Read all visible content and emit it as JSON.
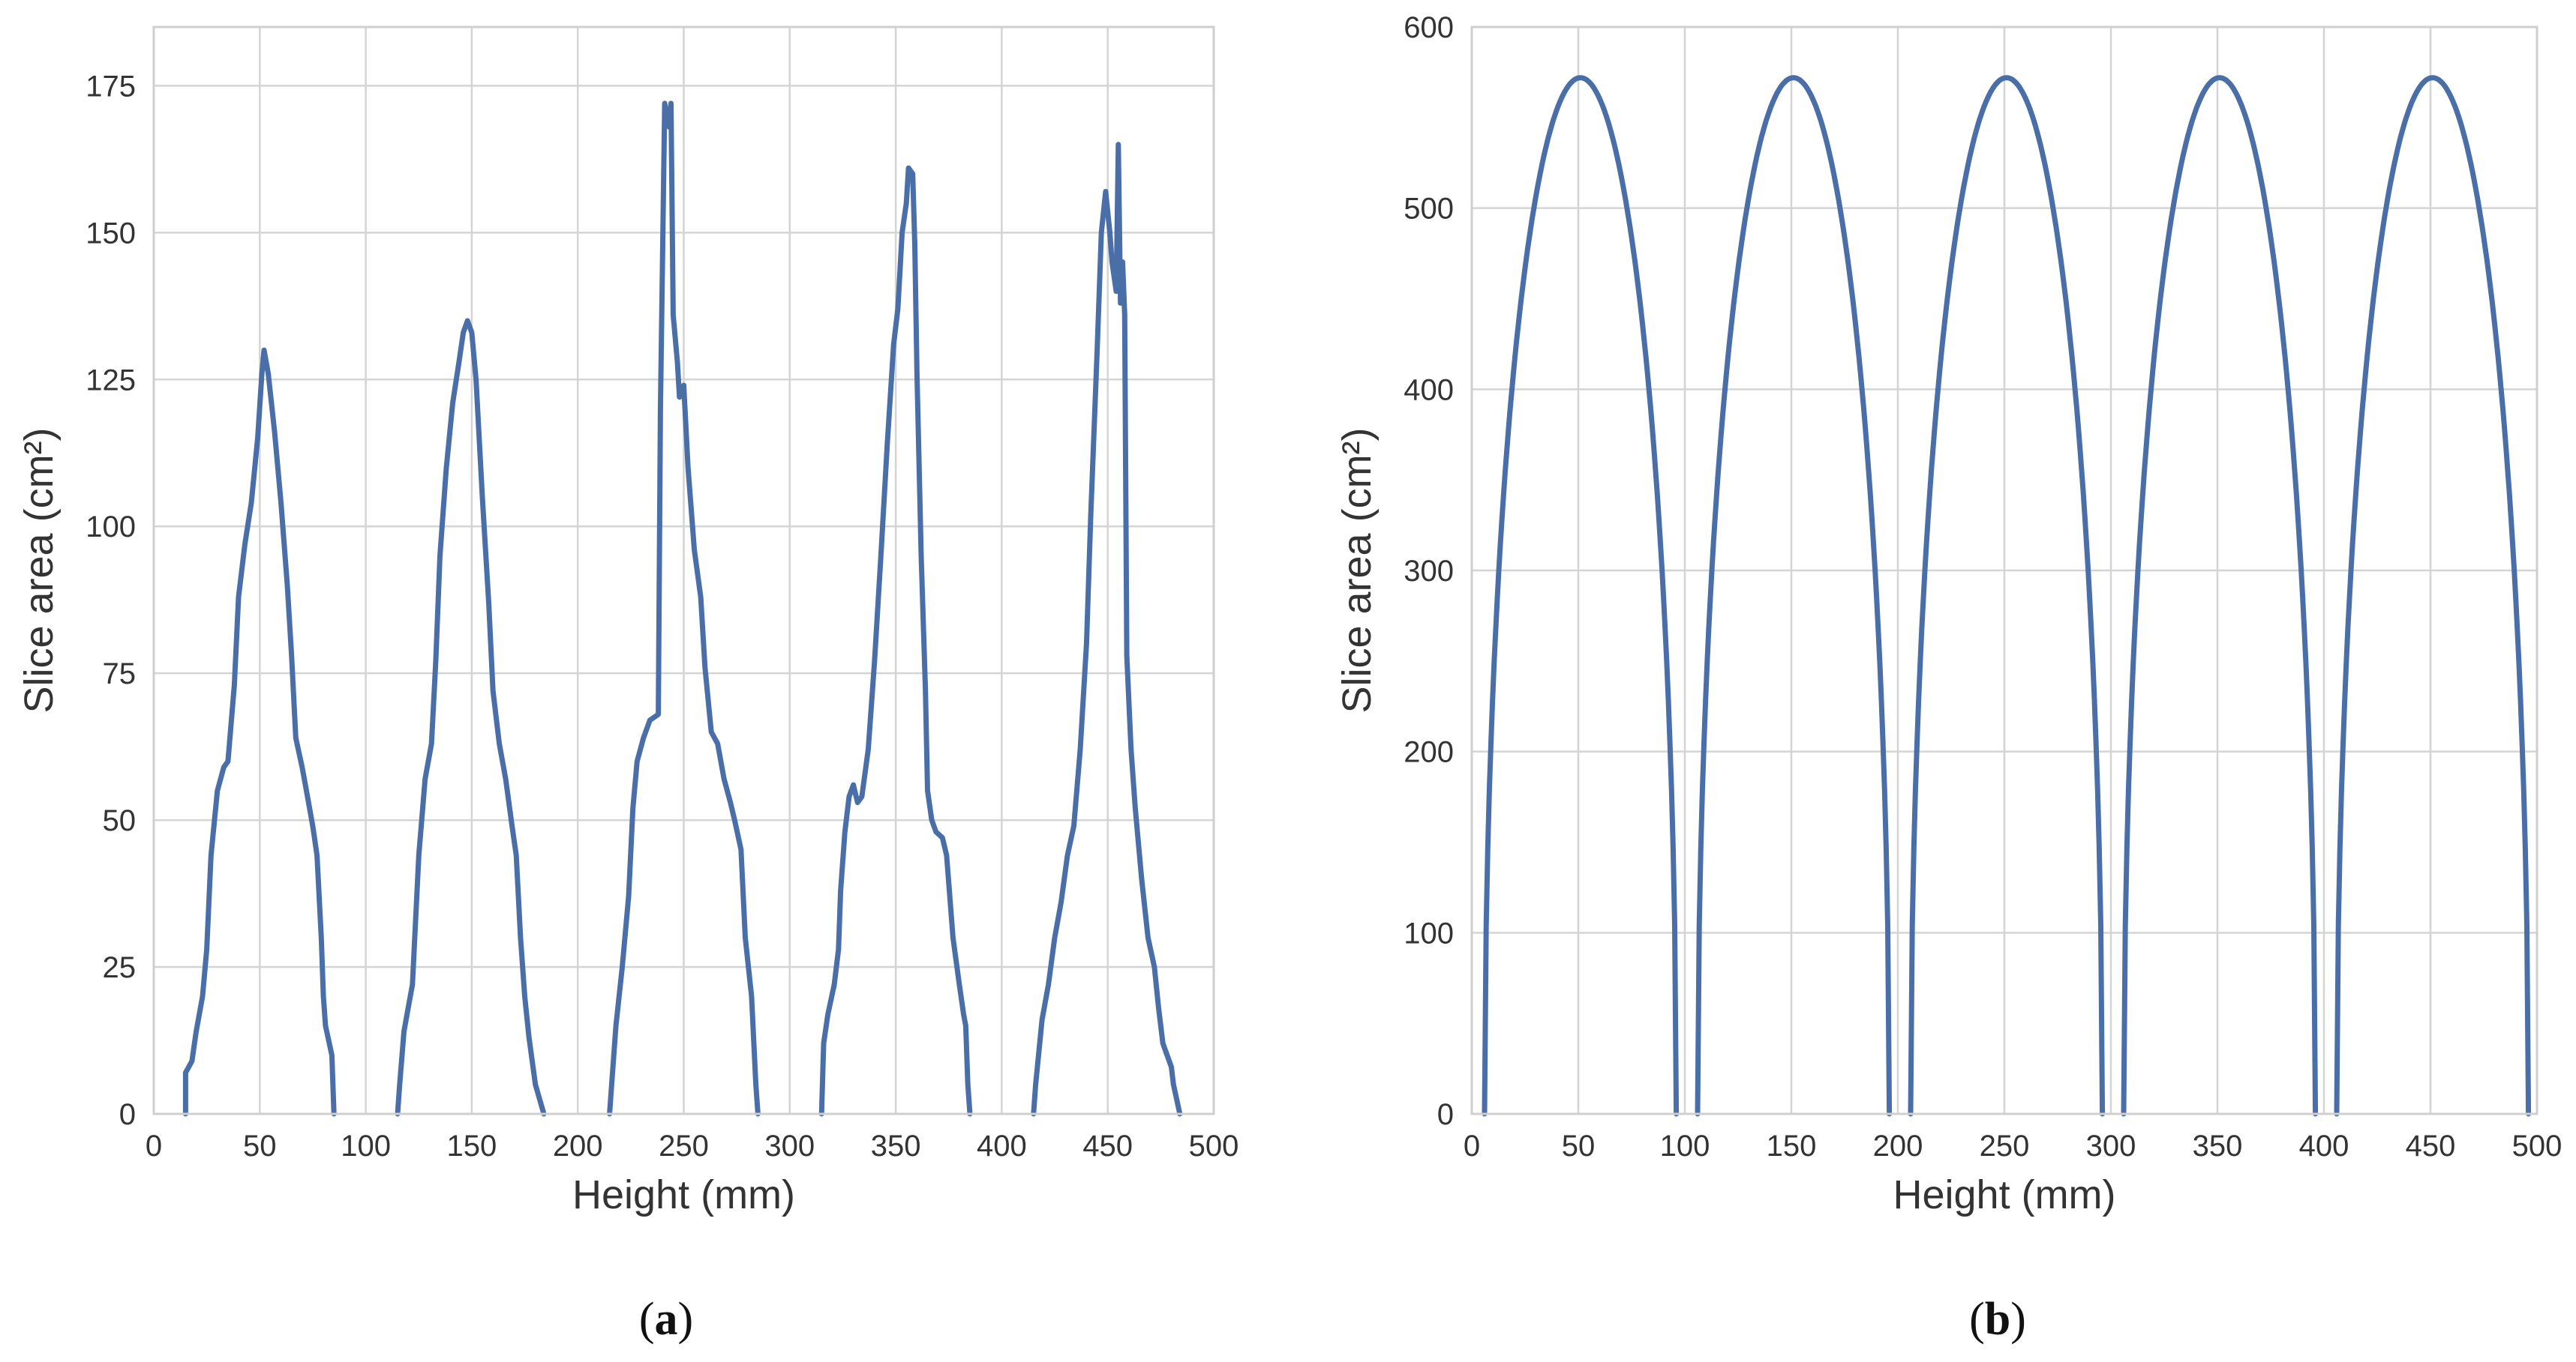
{
  "figure": {
    "panels": [
      "(a)",
      "(b)"
    ]
  },
  "chart_data": [
    {
      "type": "line",
      "panel": "a",
      "caption_letter": "a",
      "xlabel": "Height (mm)",
      "ylabel": "Slice area (cm²)",
      "xlim": [
        0,
        500
      ],
      "ylim": [
        0,
        185
      ],
      "xticks": [
        0,
        50,
        100,
        150,
        200,
        250,
        300,
        350,
        400,
        450,
        500
      ],
      "yticks": [
        0,
        25,
        50,
        75,
        100,
        125,
        150,
        175
      ],
      "grid": true,
      "color": "#4a6ea8",
      "segments": [
        [
          [
            15,
            0
          ],
          [
            15,
            7
          ],
          [
            18,
            9
          ],
          [
            20,
            14
          ],
          [
            23,
            20
          ],
          [
            25,
            28
          ],
          [
            27,
            44
          ],
          [
            30,
            55
          ],
          [
            33,
            59
          ],
          [
            35,
            60
          ],
          [
            38,
            73
          ],
          [
            40,
            88
          ],
          [
            43,
            97
          ],
          [
            46,
            104
          ],
          [
            49,
            115
          ],
          [
            51,
            126
          ],
          [
            52,
            130
          ],
          [
            54,
            126
          ],
          [
            57,
            116
          ],
          [
            60,
            104
          ],
          [
            63,
            90
          ],
          [
            65,
            78
          ],
          [
            67,
            64
          ],
          [
            70,
            59
          ],
          [
            72,
            55
          ],
          [
            75,
            49
          ],
          [
            77,
            44
          ],
          [
            79,
            30
          ],
          [
            80,
            20
          ],
          [
            81,
            15
          ],
          [
            84,
            10
          ],
          [
            85,
            0
          ]
        ],
        [
          [
            115,
            0
          ],
          [
            116,
            5
          ],
          [
            118,
            14
          ],
          [
            120,
            18
          ],
          [
            122,
            22
          ],
          [
            125,
            44
          ],
          [
            128,
            57
          ],
          [
            131,
            63
          ],
          [
            133,
            77
          ],
          [
            135,
            95
          ],
          [
            138,
            110
          ],
          [
            141,
            121
          ],
          [
            144,
            128
          ],
          [
            146,
            133
          ],
          [
            148,
            135
          ],
          [
            150,
            133
          ],
          [
            152,
            125
          ],
          [
            155,
            105
          ],
          [
            158,
            87
          ],
          [
            160,
            72
          ],
          [
            163,
            63
          ],
          [
            166,
            57
          ],
          [
            169,
            49
          ],
          [
            171,
            44
          ],
          [
            173,
            30
          ],
          [
            175,
            20
          ],
          [
            177,
            13
          ],
          [
            180,
            5
          ],
          [
            184,
            0
          ]
        ],
        [
          [
            215,
            0
          ],
          [
            216,
            5
          ],
          [
            218,
            15
          ],
          [
            221,
            25
          ],
          [
            224,
            37
          ],
          [
            226,
            52
          ],
          [
            228,
            60
          ],
          [
            231,
            64
          ],
          [
            234,
            67
          ],
          [
            238,
            68
          ],
          [
            239,
            120
          ],
          [
            241,
            172
          ],
          [
            243,
            168
          ],
          [
            244,
            172
          ],
          [
            245,
            136
          ],
          [
            247,
            128
          ],
          [
            248,
            122
          ],
          [
            250,
            124
          ],
          [
            252,
            110
          ],
          [
            255,
            96
          ],
          [
            258,
            88
          ],
          [
            260,
            76
          ],
          [
            263,
            65
          ],
          [
            266,
            63
          ],
          [
            269,
            57
          ],
          [
            272,
            53
          ],
          [
            274,
            50
          ],
          [
            277,
            45
          ],
          [
            279,
            30
          ],
          [
            282,
            20
          ],
          [
            284,
            5
          ],
          [
            285,
            0
          ]
        ],
        [
          [
            315,
            0
          ],
          [
            316,
            12
          ],
          [
            318,
            17
          ],
          [
            321,
            22
          ],
          [
            323,
            28
          ],
          [
            324,
            38
          ],
          [
            326,
            48
          ],
          [
            328,
            54
          ],
          [
            330,
            56
          ],
          [
            332,
            53
          ],
          [
            334,
            54
          ],
          [
            337,
            62
          ],
          [
            340,
            77
          ],
          [
            343,
            95
          ],
          [
            346,
            114
          ],
          [
            349,
            131
          ],
          [
            351,
            137
          ],
          [
            353,
            150
          ],
          [
            355,
            155
          ],
          [
            356,
            161
          ],
          [
            358,
            160
          ],
          [
            359,
            148
          ],
          [
            360,
            126
          ],
          [
            362,
            95
          ],
          [
            364,
            72
          ],
          [
            365,
            55
          ],
          [
            367,
            50
          ],
          [
            369,
            48
          ],
          [
            372,
            47
          ],
          [
            374,
            44
          ],
          [
            377,
            30
          ],
          [
            380,
            22
          ],
          [
            382,
            17
          ],
          [
            383,
            15
          ],
          [
            384,
            5
          ],
          [
            385,
            0
          ]
        ],
        [
          [
            415,
            0
          ],
          [
            416,
            5
          ],
          [
            419,
            16
          ],
          [
            422,
            22
          ],
          [
            425,
            30
          ],
          [
            428,
            36
          ],
          [
            431,
            44
          ],
          [
            434,
            49
          ],
          [
            437,
            62
          ],
          [
            440,
            80
          ],
          [
            442,
            102
          ],
          [
            445,
            130
          ],
          [
            447,
            150
          ],
          [
            449,
            157
          ],
          [
            451,
            150
          ],
          [
            452,
            145
          ],
          [
            454,
            140
          ],
          [
            455,
            165
          ],
          [
            456,
            138
          ],
          [
            457,
            145
          ],
          [
            458,
            136
          ],
          [
            459,
            78
          ],
          [
            461,
            62
          ],
          [
            463,
            52
          ],
          [
            466,
            40
          ],
          [
            469,
            30
          ],
          [
            472,
            25
          ],
          [
            474,
            18
          ],
          [
            476,
            12
          ],
          [
            478,
            10
          ],
          [
            480,
            8
          ],
          [
            481,
            5
          ],
          [
            484,
            0
          ]
        ]
      ]
    },
    {
      "type": "line",
      "panel": "b",
      "caption_letter": "b",
      "xlabel": "Height (mm)",
      "ylabel": "Slice area (cm²)",
      "xlim": [
        0,
        500
      ],
      "ylim": [
        0,
        600
      ],
      "xticks": [
        0,
        50,
        100,
        150,
        200,
        250,
        300,
        350,
        400,
        450,
        500
      ],
      "yticks": [
        0,
        100,
        200,
        300,
        400,
        500,
        600
      ],
      "grid": true,
      "color": "#4a6ea8",
      "curve": "lens",
      "lens_centers": [
        51,
        151,
        251,
        351,
        451
      ],
      "lens_half_width": 45,
      "peak_value": 572
    }
  ]
}
